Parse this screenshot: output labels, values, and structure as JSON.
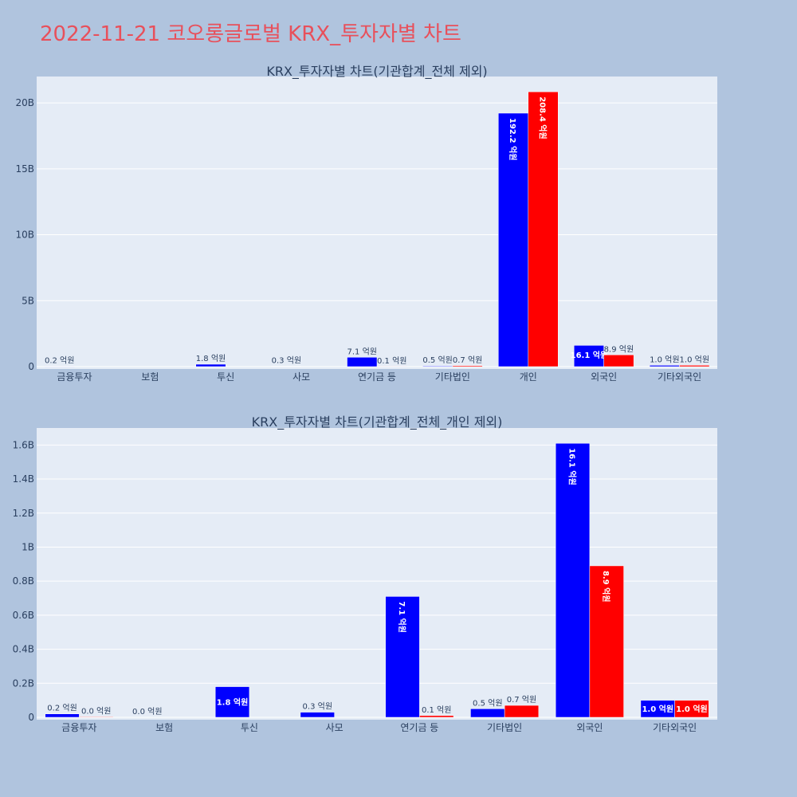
{
  "title": "2022-11-21 코오롱글로벌 KRX_투자자별 차트",
  "colors": {
    "buy": "#0000ff",
    "sell": "#ff0000",
    "plot_bg": "#e5ecf6",
    "page_bg": "#b0c4de",
    "title": "#e8505b"
  },
  "chart_data": [
    {
      "type": "bar",
      "title": "KRX_투자자별 차트(기관합계_전체 제외)",
      "categories": [
        "금융투자",
        "보험",
        "투신",
        "사모",
        "연기금 등",
        "기타법인",
        "개인",
        "외국인",
        "기타외국인"
      ],
      "ylim": [
        0,
        22000000000
      ],
      "yticks": [
        0,
        5000000000,
        10000000000,
        15000000000,
        20000000000
      ],
      "yticklabels": [
        "0",
        "5B",
        "10B",
        "15B",
        "20B"
      ],
      "grid": true,
      "series": [
        {
          "color": "#0000ff",
          "values": [
            20000000,
            null,
            180000000,
            30000000,
            710000000,
            50000000,
            19220000000,
            1610000000,
            100000000
          ],
          "labels": [
            "0.2 억원",
            "",
            "1.8 억원",
            "0.3 억원",
            "7.1 억원",
            "0.5 억원",
            "192.2 억원",
            "16.1 억원",
            "1.0 억원"
          ]
        },
        {
          "color": "#ff0000",
          "values": [
            null,
            null,
            null,
            null,
            10000000,
            70000000,
            20840000000,
            890000000,
            100000000
          ],
          "labels": [
            "",
            "",
            "",
            "",
            "0.1 억원",
            "0.7 억원",
            "208.4 억원",
            "8.9 억원",
            "1.0 억원"
          ]
        }
      ]
    },
    {
      "type": "bar",
      "title": "KRX_투자자별 차트(기관합계_전체_개인 제외)",
      "categories": [
        "금융투자",
        "보험",
        "투신",
        "사모",
        "연기금 등",
        "기타법인",
        "외국인",
        "기타외국인"
      ],
      "ylim": [
        0,
        1700000000
      ],
      "yticks": [
        0,
        200000000,
        400000000,
        600000000,
        800000000,
        1000000000,
        1200000000,
        1400000000,
        1600000000
      ],
      "yticklabels": [
        "0",
        "0.2B",
        "0.4B",
        "0.6B",
        "0.8B",
        "1B",
        "1.2B",
        "1.4B",
        "1.6B"
      ],
      "grid": true,
      "series": [
        {
          "color": "#0000ff",
          "values": [
            20000000,
            null,
            180000000,
            30000000,
            710000000,
            50000000,
            1610000000,
            100000000
          ],
          "labels": [
            "0.2 억원",
            "0.0 억원",
            "1.8 억원",
            "0.3 억원",
            "7.1 억원",
            "0.5 억원",
            "16.1 억원",
            "1.0 억원"
          ]
        },
        {
          "color": "#ff0000",
          "values": [
            3000000,
            null,
            null,
            null,
            10000000,
            70000000,
            890000000,
            100000000
          ],
          "labels": [
            "0.0 억원",
            "",
            "",
            "",
            "0.1 억원",
            "0.7 억원",
            "8.9 억원",
            "1.0 억원"
          ]
        }
      ]
    }
  ]
}
